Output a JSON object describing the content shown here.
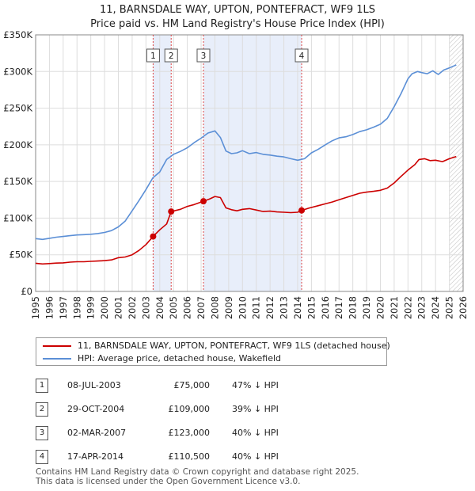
{
  "chart_data": {
    "type": "line",
    "title": "11, BARNSDALE WAY, UPTON, PONTEFRACT, WF9 1LS",
    "subtitle": "Price paid vs. HM Land Registry's House Price Index (HPI)",
    "xlabel": "",
    "ylabel": "",
    "xlim": [
      1995,
      2026
    ],
    "ylim": [
      0,
      350000
    ],
    "x_ticks": [
      "1995",
      "1996",
      "1997",
      "1998",
      "1999",
      "2000",
      "2001",
      "2002",
      "2003",
      "2004",
      "2005",
      "2006",
      "2007",
      "2008",
      "2009",
      "2010",
      "2011",
      "2012",
      "2013",
      "2014",
      "2015",
      "2016",
      "2017",
      "2018",
      "2019",
      "2020",
      "2021",
      "2022",
      "2023",
      "2024",
      "2025",
      "2026"
    ],
    "y_ticks": [
      {
        "value": 0,
        "label": "£0"
      },
      {
        "value": 50000,
        "label": "£50K"
      },
      {
        "value": 100000,
        "label": "£100K"
      },
      {
        "value": 150000,
        "label": "£150K"
      },
      {
        "value": 200000,
        "label": "£200K"
      },
      {
        "value": 250000,
        "label": "£250K"
      },
      {
        "value": 300000,
        "label": "£300K"
      },
      {
        "value": 350000,
        "label": "£350K"
      }
    ],
    "grid": true,
    "shaded_ranges": [
      [
        2003.52,
        2004.83
      ],
      [
        2007.17,
        2014.29
      ]
    ],
    "forecast_start": 2025.0,
    "series": [
      {
        "name": "11, BARNSDALE WAY, UPTON, PONTEFRACT, WF9 1LS (detached house)",
        "color": "#cc0000",
        "x": [
          1995.0,
          1995.5,
          1996.0,
          1996.5,
          1997.0,
          1997.5,
          1998.0,
          1998.5,
          1999.0,
          1999.5,
          2000.0,
          2000.5,
          2001.0,
          2001.5,
          2002.0,
          2002.5,
          2003.0,
          2003.52,
          2004.0,
          2004.5,
          2004.83,
          2005.5,
          2006.0,
          2006.5,
          2007.17,
          2007.6,
          2008.0,
          2008.4,
          2008.8,
          2009.2,
          2009.6,
          2010.0,
          2010.5,
          2011.0,
          2011.5,
          2012.0,
          2012.5,
          2013.0,
          2013.5,
          2014.0,
          2014.29,
          2014.8,
          2015.5,
          2016.0,
          2016.5,
          2017.0,
          2017.5,
          2018.0,
          2018.5,
          2019.0,
          2019.5,
          2020.0,
          2020.5,
          2021.0,
          2021.5,
          2022.0,
          2022.5,
          2022.8,
          2023.2,
          2023.6,
          2024.0,
          2024.5,
          2025.0,
          2025.5
        ],
        "values": [
          38500,
          37500,
          38000,
          38700,
          39000,
          40000,
          40500,
          40500,
          41000,
          41500,
          42000,
          43000,
          46000,
          47000,
          50000,
          56000,
          64000,
          75000,
          84000,
          92000,
          109000,
          112000,
          116000,
          118500,
          123000,
          126000,
          129500,
          128000,
          114000,
          111500,
          110000,
          112000,
          113000,
          111000,
          109000,
          109500,
          108500,
          108000,
          107500,
          108000,
          110500,
          113500,
          117000,
          119500,
          122000,
          125000,
          128000,
          131000,
          134000,
          135500,
          136500,
          138000,
          141000,
          148000,
          157000,
          165500,
          173000,
          180000,
          181000,
          178500,
          179000,
          177000,
          181000,
          184000
        ]
      },
      {
        "name": "HPI: Average price, detached house, Wakefield",
        "color": "#5b8fd6",
        "x": [
          1995.0,
          1995.5,
          1996.0,
          1996.5,
          1997.0,
          1997.5,
          1998.0,
          1998.5,
          1999.0,
          1999.5,
          2000.0,
          2000.5,
          2001.0,
          2001.5,
          2002.0,
          2002.5,
          2003.0,
          2003.5,
          2004.0,
          2004.5,
          2005.0,
          2005.5,
          2006.0,
          2006.5,
          2007.0,
          2007.5,
          2008.0,
          2008.4,
          2008.8,
          2009.2,
          2009.6,
          2010.0,
          2010.5,
          2011.0,
          2011.5,
          2012.0,
          2012.5,
          2013.0,
          2013.5,
          2014.0,
          2014.5,
          2015.0,
          2015.5,
          2016.0,
          2016.5,
          2017.0,
          2017.5,
          2018.0,
          2018.5,
          2019.0,
          2019.5,
          2020.0,
          2020.5,
          2021.0,
          2021.5,
          2022.0,
          2022.3,
          2022.7,
          2023.0,
          2023.4,
          2023.8,
          2024.2,
          2024.6,
          2025.0,
          2025.5
        ],
        "values": [
          72000,
          71000,
          72500,
          74000,
          75000,
          76000,
          77000,
          77500,
          78000,
          79000,
          80500,
          83000,
          88000,
          96000,
          110000,
          124000,
          139000,
          155000,
          163000,
          180000,
          187000,
          191000,
          196000,
          203000,
          209000,
          216000,
          219000,
          210000,
          191500,
          188000,
          189000,
          192000,
          188000,
          189500,
          187000,
          186000,
          184500,
          183500,
          181000,
          179000,
          181000,
          189000,
          194000,
          200000,
          205500,
          209500,
          211000,
          214000,
          218000,
          220500,
          224000,
          228000,
          236000,
          252000,
          270000,
          290000,
          297000,
          300000,
          298500,
          297000,
          301000,
          296000,
          302000,
          305000,
          309000
        ]
      }
    ],
    "annotations": [
      {
        "label": "1",
        "x": 2003.52,
        "value": 75000
      },
      {
        "label": "2",
        "x": 2004.83,
        "value": 109000
      },
      {
        "label": "3",
        "x": 2007.17,
        "value": 123000
      },
      {
        "label": "4",
        "x": 2014.29,
        "value": 110500
      }
    ]
  },
  "legend": {
    "items": [
      {
        "label": "11, BARNSDALE WAY, UPTON, PONTEFRACT, WF9 1LS (detached house)",
        "color": "#cc0000"
      },
      {
        "label": "HPI: Average price, detached house, Wakefield",
        "color": "#5b8fd6"
      }
    ]
  },
  "sales": [
    {
      "marker": "1",
      "date": "08-JUL-2003",
      "price": "£75,000",
      "hpi": "47% ↓ HPI"
    },
    {
      "marker": "2",
      "date": "29-OCT-2004",
      "price": "£109,000",
      "hpi": "39% ↓ HPI"
    },
    {
      "marker": "3",
      "date": "02-MAR-2007",
      "price": "£123,000",
      "hpi": "40% ↓ HPI"
    },
    {
      "marker": "4",
      "date": "17-APR-2014",
      "price": "£110,500",
      "hpi": "40% ↓ HPI"
    }
  ],
  "footer": {
    "line1": "Contains HM Land Registry data © Crown copyright and database right 2025.",
    "line2": "This data is licensed under the Open Government Licence v3.0."
  }
}
